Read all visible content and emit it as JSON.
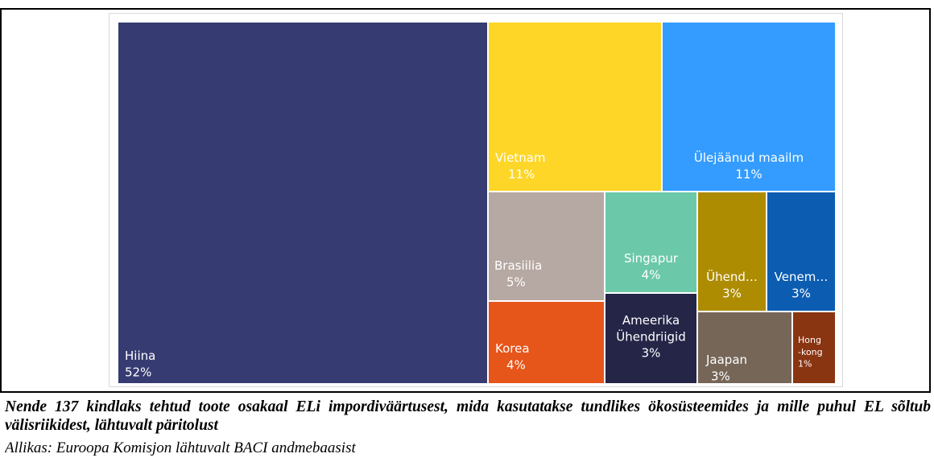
{
  "chart_data": {
    "type": "treemap",
    "title": "",
    "items": [
      {
        "name": "Hiina",
        "value": 52,
        "label": "52%",
        "color": "#363c72"
      },
      {
        "name": "Vietnam",
        "value": 11,
        "label": "11%",
        "color": "#fdd627"
      },
      {
        "name": "Ülejäänud maailm",
        "value": 11,
        "label": "11%",
        "color": "#339cfe"
      },
      {
        "name": "Brasiilia",
        "value": 5,
        "label": "5%",
        "color": "#b6a8a2"
      },
      {
        "name": "Korea",
        "value": 4,
        "label": "4%",
        "color": "#e6551a"
      },
      {
        "name": "Singapur",
        "value": 4,
        "label": "4%",
        "color": "#6bc8a9"
      },
      {
        "name": "Ameerika Ühendriigid",
        "value": 3,
        "label": "3%",
        "color": "#252548"
      },
      {
        "name": "Ühend…",
        "value": 3,
        "label": "3%",
        "color": "#ae8c02"
      },
      {
        "name": "Venem…",
        "value": 3,
        "label": "3%",
        "color": "#0c5db1"
      },
      {
        "name": "Jaapan",
        "value": 3,
        "label": "3%",
        "color": "#766658"
      },
      {
        "name": "Hong-kong",
        "value": 1,
        "label": "1%",
        "color": "#8a3512"
      }
    ]
  },
  "caption": "Nende 137 kindlaks tehtud toote osakaal ELi impordiväärtusest, mida kasutatakse tundlikes ökosüsteemides ja mille puhul EL sõltub välisriikidest, lähtuvalt päritolust",
  "source": "Allikas: Euroopa Komisjon lähtuvalt BACI andmebaasist"
}
